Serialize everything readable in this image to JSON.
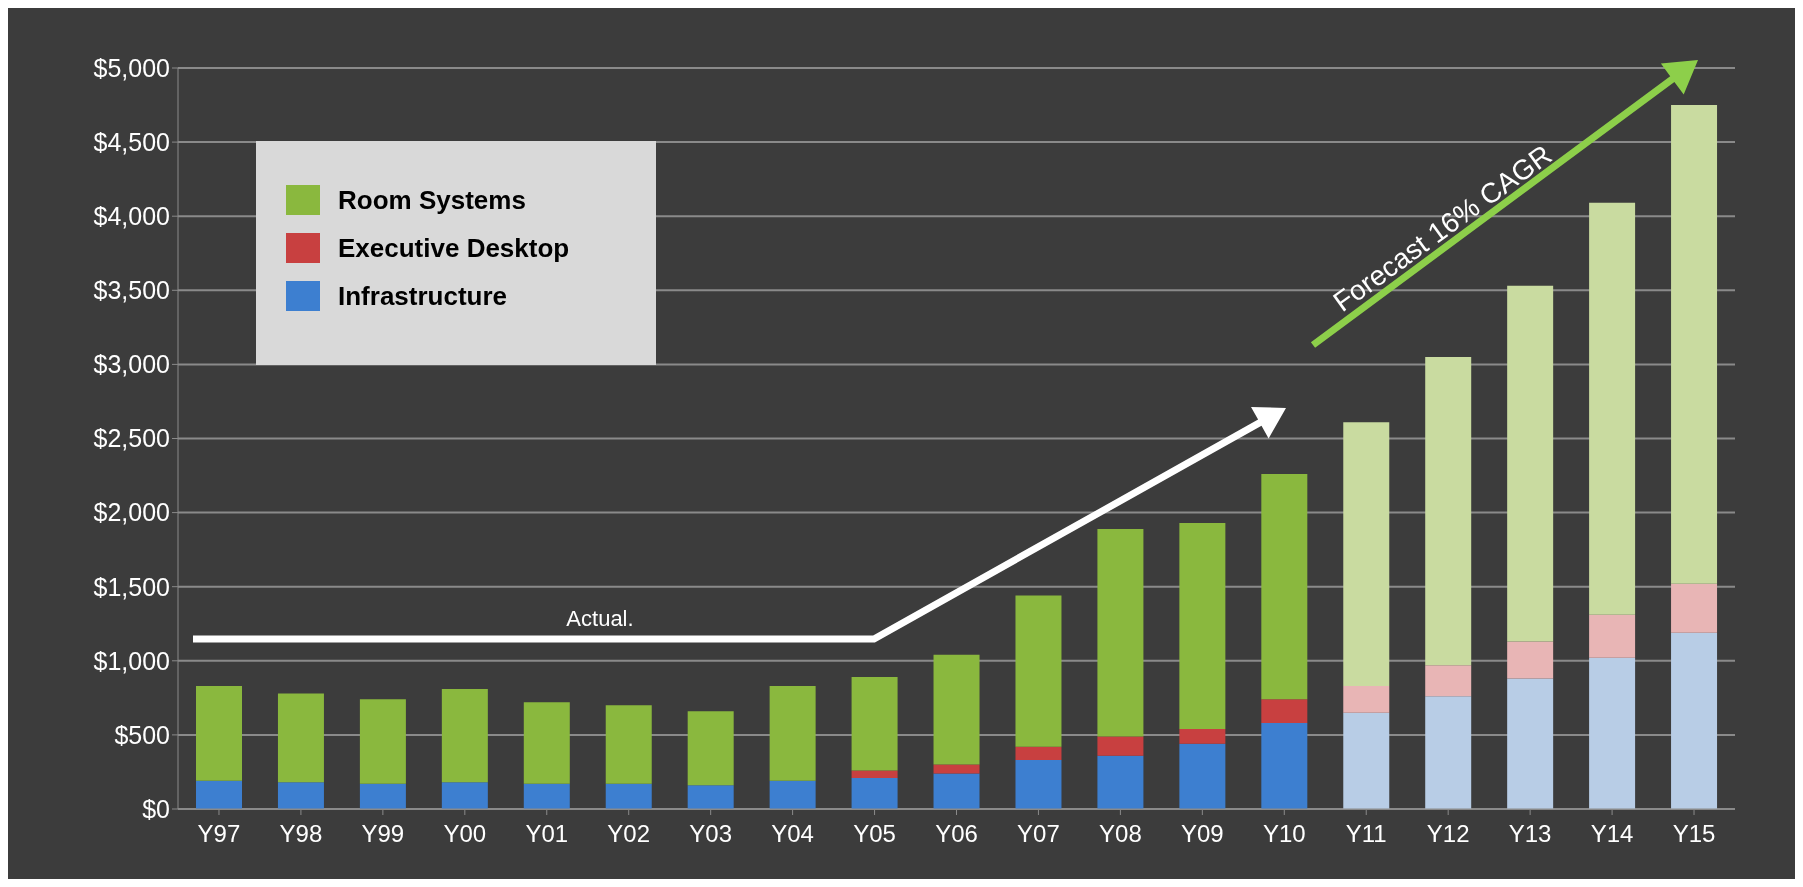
{
  "chart_data": {
    "type": "bar",
    "stacked": true,
    "categories": [
      "Y97",
      "Y98",
      "Y99",
      "Y00",
      "Y01",
      "Y02",
      "Y03",
      "Y04",
      "Y05",
      "Y06",
      "Y07",
      "Y08",
      "Y09",
      "Y10",
      "Y11",
      "Y12",
      "Y13",
      "Y14",
      "Y15"
    ],
    "series": [
      {
        "name": "Infrastructure",
        "color": "#3d7fd0",
        "colors": [
          "#3d7fd0",
          "#3d7fd0",
          "#3d7fd0",
          "#3d7fd0",
          "#3d7fd0",
          "#3d7fd0",
          "#3d7fd0",
          "#3d7fd0",
          "#3d7fd0",
          "#3d7fd0",
          "#3d7fd0",
          "#3d7fd0",
          "#3d7fd0",
          "#3d7fd0",
          "#b8cde6",
          "#b8cde6",
          "#b8cde6",
          "#b8cde6",
          "#b8cde6"
        ],
        "values": [
          190,
          180,
          170,
          180,
          170,
          170,
          160,
          190,
          210,
          240,
          330,
          360,
          440,
          580,
          650,
          760,
          880,
          1020,
          1190
        ]
      },
      {
        "name": "Executive Desktop",
        "color": "#c84040",
        "colors": [
          "#c84040",
          "#c84040",
          "#c84040",
          "#c84040",
          "#c84040",
          "#c84040",
          "#c84040",
          "#c84040",
          "#c84040",
          "#c84040",
          "#c84040",
          "#c84040",
          "#c84040",
          "#c84040",
          "#e8b5b5",
          "#e8b5b5",
          "#e8b5b5",
          "#e8b5b5",
          "#e8b5b5"
        ],
        "values": [
          0,
          0,
          0,
          0,
          0,
          0,
          0,
          0,
          50,
          60,
          90,
          130,
          100,
          160,
          180,
          210,
          250,
          290,
          330
        ]
      },
      {
        "name": "Room Systems",
        "color": "#8ab83e",
        "colors": [
          "#8ab83e",
          "#8ab83e",
          "#8ab83e",
          "#8ab83e",
          "#8ab83e",
          "#8ab83e",
          "#8ab83e",
          "#8ab83e",
          "#8ab83e",
          "#8ab83e",
          "#8ab83e",
          "#8ab83e",
          "#8ab83e",
          "#8ab83e",
          "#c9dba0",
          "#c9dba0",
          "#c9dba0",
          "#c9dba0",
          "#c9dba0"
        ],
        "values": [
          640,
          600,
          570,
          630,
          550,
          530,
          500,
          640,
          630,
          740,
          1020,
          1400,
          1390,
          1520,
          1780,
          2080,
          2400,
          2780,
          3230
        ]
      }
    ],
    "ylim": [
      0,
      5000
    ],
    "yticks": [
      {
        "value": 0,
        "label": "$0"
      },
      {
        "value": 500,
        "label": "$500"
      },
      {
        "value": 1000,
        "label": "$1,000"
      },
      {
        "value": 1500,
        "label": "$1,500"
      },
      {
        "value": 2000,
        "label": "$2,000"
      },
      {
        "value": 2500,
        "label": "$2,500"
      },
      {
        "value": 3000,
        "label": "$3,000"
      },
      {
        "value": 3500,
        "label": "$3,500"
      },
      {
        "value": 4000,
        "label": "$4,000"
      },
      {
        "value": 4500,
        "label": "$4,500"
      },
      {
        "value": 5000,
        "label": "$5,000"
      }
    ],
    "grid": "y",
    "legend": "top left",
    "annotations": [
      "Actual.",
      "Forecast 16% CAGR"
    ]
  }
}
